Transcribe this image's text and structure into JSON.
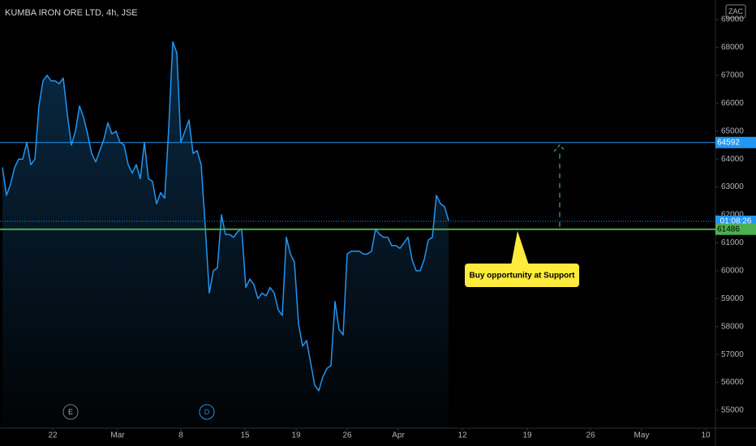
{
  "chart_data": {
    "type": "line",
    "title": "KUMBA IRON ORE LTD, 4h, JSE",
    "currency": "ZAC",
    "color": "#2196f3",
    "values": [
      63700,
      62700,
      63100,
      63700,
      64000,
      64000,
      64600,
      63800,
      64000,
      65900,
      66800,
      67000,
      66800,
      66800,
      66700,
      66900,
      65600,
      64500,
      65000,
      65900,
      65500,
      64900,
      64200,
      63900,
      64300,
      64700,
      65300,
      64900,
      65000,
      64600,
      64500,
      63800,
      63500,
      63800,
      63300,
      64600,
      63300,
      63200,
      62400,
      62800,
      62600,
      65100,
      68200,
      67800,
      64600,
      65000,
      65400,
      64200,
      64300,
      63800,
      61600,
      59200,
      60000,
      60100,
      62000,
      61300,
      61300,
      61200,
      61400,
      61500,
      59400,
      59700,
      59500,
      59000,
      59200,
      59100,
      59400,
      59200,
      58600,
      58400,
      61200,
      60600,
      60300,
      58100,
      57300,
      57500,
      56700,
      55900,
      55700,
      56200,
      56500,
      56600,
      58900,
      57900,
      57700,
      60600,
      60700,
      60700,
      60700,
      60600,
      60600,
      60700,
      61500,
      61300,
      61200,
      61200,
      60900,
      60900,
      60800,
      61000,
      61200,
      60400,
      60000,
      60000,
      60400,
      61100,
      61200,
      62700,
      62400,
      62300,
      61800
    ],
    "xlim": [
      -0.6,
      175.8
    ],
    "xticks": [
      {
        "value": 12.4,
        "label": "22"
      },
      {
        "value": 28.4,
        "label": "Mar"
      },
      {
        "value": 44,
        "label": "8"
      },
      {
        "value": 59.8,
        "label": "15"
      },
      {
        "value": 72.4,
        "label": "19"
      },
      {
        "value": 85,
        "label": "26"
      },
      {
        "value": 97.6,
        "label": "Apr"
      },
      {
        "value": 113.4,
        "label": "12"
      },
      {
        "value": 129.4,
        "label": "19"
      },
      {
        "value": 145,
        "label": "26"
      },
      {
        "value": 157.6,
        "label": "May"
      },
      {
        "value": 173.4,
        "label": "10"
      }
    ],
    "ylim": [
      54362,
      69697
    ],
    "yticks": [
      55000,
      56000,
      57000,
      58000,
      59000,
      60000,
      61000,
      62000,
      63000,
      64000,
      65000,
      66000,
      67000,
      68000,
      69000
    ],
    "grid": false,
    "levels": [
      {
        "value": 64592,
        "color": "#2196f3"
      },
      {
        "value": 61486,
        "color": "#4caf50"
      }
    ],
    "price_line": {
      "value": 61770,
      "label": "01:08:26"
    },
    "annotation": "Buy opportunity at Support",
    "arrow_x": 137.4,
    "events": [
      {
        "label": "E",
        "x": 16.8
      },
      {
        "label": "D",
        "x": 50.4
      }
    ]
  }
}
